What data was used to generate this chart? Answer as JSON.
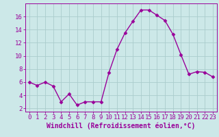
{
  "x": [
    0,
    1,
    2,
    3,
    4,
    5,
    6,
    7,
    8,
    9,
    10,
    11,
    12,
    13,
    14,
    15,
    16,
    17,
    18,
    19,
    20,
    21,
    22,
    23
  ],
  "y": [
    6.0,
    5.5,
    6.0,
    5.4,
    3.0,
    4.2,
    2.5,
    3.0,
    3.0,
    3.0,
    7.5,
    11.0,
    13.5,
    15.3,
    17.0,
    17.0,
    16.2,
    15.4,
    13.3,
    10.2,
    7.2,
    7.6,
    7.5,
    6.8
  ],
  "line_color": "#990099",
  "marker": "D",
  "marker_size": 2.5,
  "bg_color": "#cce8e8",
  "grid_color": "#aacccc",
  "xlabel": "Windchill (Refroidissement éolien,°C)",
  "xlabel_fontsize": 7,
  "tick_fontsize": 6.5,
  "ylim": [
    1.5,
    18.0
  ],
  "xlim": [
    -0.5,
    23.5
  ],
  "yticks": [
    2,
    4,
    6,
    8,
    10,
    12,
    14,
    16
  ],
  "xticks": [
    0,
    1,
    2,
    3,
    4,
    5,
    6,
    7,
    8,
    9,
    10,
    11,
    12,
    13,
    14,
    15,
    16,
    17,
    18,
    19,
    20,
    21,
    22,
    23
  ],
  "line_width": 1.0
}
